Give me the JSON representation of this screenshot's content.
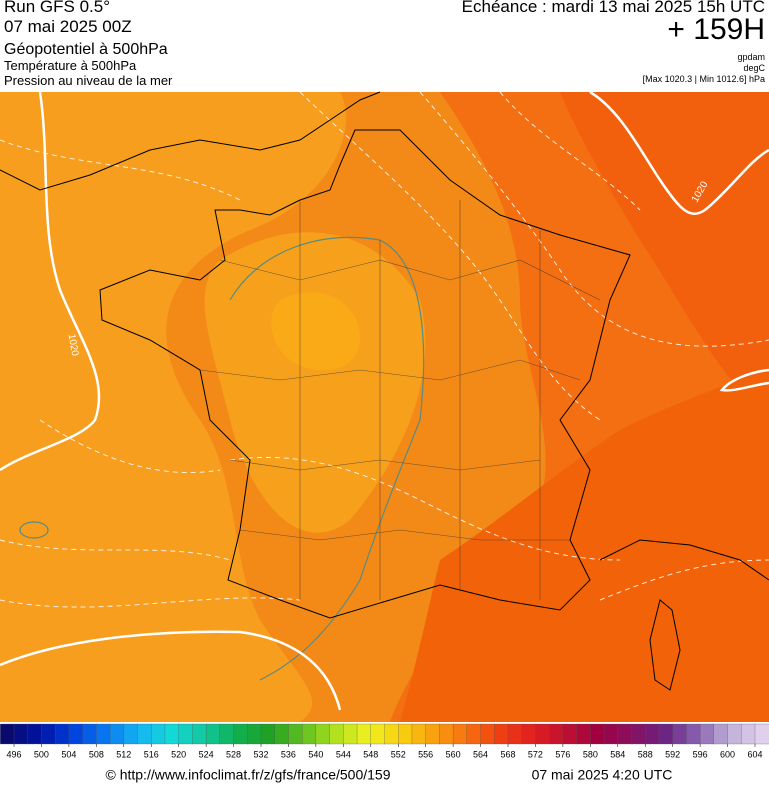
{
  "header": {
    "run": "Run GFS 0.5°",
    "date": "07 mai 2025 00Z",
    "title": "Géopotentiel à 500hPa",
    "subtitle_1": "Température à 500hPa",
    "subtitle_2": "Pression au niveau de la mer",
    "valid": "Echéance : mardi 13 mai 2025 15h UTC",
    "lead": "+ 159H",
    "unit_1": "gpdam",
    "unit_2": "degC",
    "pressure_range": "[Max 1020.3 | Min 1012.6] hPa"
  },
  "map": {
    "isobar_labels": [
      "1020",
      "1020"
    ]
  },
  "colorbar": {
    "labels": [
      496,
      500,
      504,
      508,
      512,
      516,
      520,
      524,
      528,
      532,
      536,
      540,
      544,
      548,
      552,
      556,
      560,
      564,
      568,
      572,
      576,
      580,
      584,
      588,
      592,
      596,
      600,
      604
    ]
  },
  "footer": {
    "url": "© http://www.infoclimat.fr/z/gfs/france/500/159",
    "timestamp": "07 mai 2025  4:20 UTC"
  }
}
